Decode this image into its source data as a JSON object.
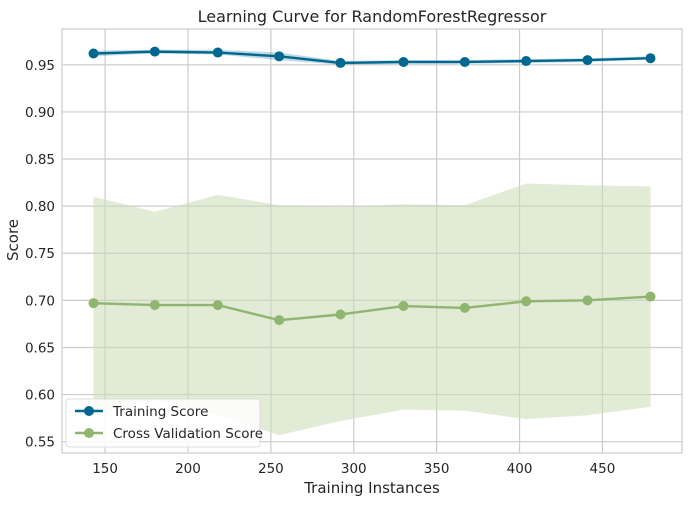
{
  "chart_data": {
    "type": "line",
    "title": "Learning Curve for RandomForestRegressor",
    "xlabel": "Training Instances",
    "ylabel": "Score",
    "xlim": [
      124,
      498
    ],
    "ylim": [
      0.538,
      0.988
    ],
    "xticks": [
      150,
      200,
      250,
      300,
      350,
      400,
      450
    ],
    "yticks": [
      0.55,
      0.6,
      0.65,
      0.7,
      0.75,
      0.8,
      0.85,
      0.9,
      0.95
    ],
    "ytick_labels": [
      "0.55",
      "0.60",
      "0.65",
      "0.70",
      "0.75",
      "0.80",
      "0.85",
      "0.90",
      "0.95"
    ],
    "grid": true,
    "legend_position": "lower-left",
    "x": [
      143,
      180,
      218,
      255,
      292,
      330,
      367,
      404,
      441,
      479
    ],
    "series": [
      {
        "name": "Training Score",
        "color": "#00678f",
        "band_color": "#00678f",
        "values": [
          0.962,
          0.964,
          0.963,
          0.959,
          0.952,
          0.953,
          0.953,
          0.954,
          0.955,
          0.957
        ],
        "band_lower": [
          0.959,
          0.962,
          0.961,
          0.955,
          0.95,
          0.951,
          0.951,
          0.952,
          0.953,
          0.956
        ],
        "band_upper": [
          0.965,
          0.966,
          0.966,
          0.963,
          0.954,
          0.955,
          0.955,
          0.956,
          0.957,
          0.959
        ]
      },
      {
        "name": "Cross Validation Score",
        "color": "#8fb56f",
        "band_color": "#c8dab5",
        "values": [
          0.697,
          0.695,
          0.695,
          0.679,
          0.685,
          0.694,
          0.692,
          0.699,
          0.7,
          0.704
        ],
        "band_lower": [
          0.58,
          0.595,
          0.578,
          0.557,
          0.572,
          0.584,
          0.583,
          0.574,
          0.578,
          0.587
        ],
        "band_upper": [
          0.81,
          0.794,
          0.812,
          0.801,
          0.799,
          0.802,
          0.801,
          0.824,
          0.822,
          0.821
        ]
      }
    ]
  }
}
